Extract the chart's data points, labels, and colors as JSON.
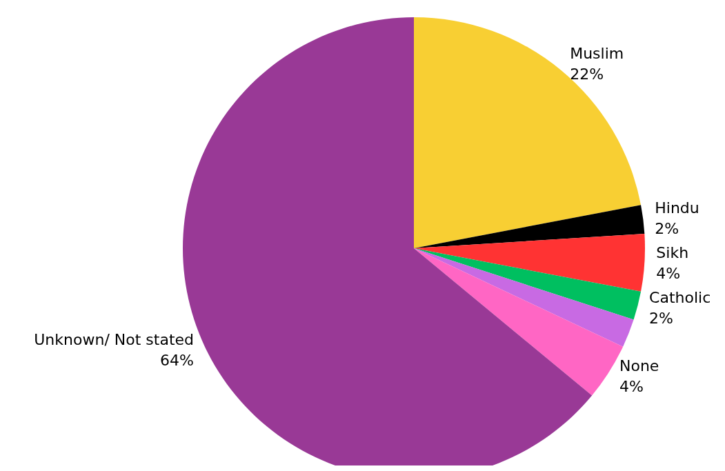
{
  "chart_data": {
    "type": "pie",
    "categories": [
      "Muslim",
      "Hindu",
      "Sikh",
      "Catholic",
      null,
      "None",
      "Unknown/ Not stated"
    ],
    "values": [
      22,
      2,
      4,
      2,
      2,
      4,
      64
    ],
    "value_labels": [
      "22%",
      "2%",
      "4%",
      "2%",
      null,
      "4%",
      "64%"
    ],
    "colors": [
      "#f8cf33",
      "#000000",
      "#ff3333",
      "#00bf60",
      "#c86ae3",
      "#ff66c4",
      "#993996"
    ],
    "legend": false
  }
}
